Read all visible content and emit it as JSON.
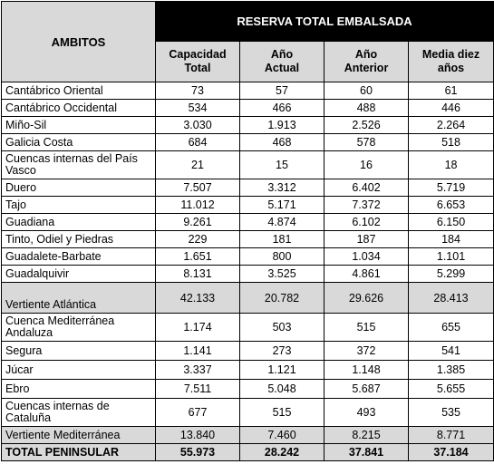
{
  "table": {
    "ambitos_header": "AMBITOS",
    "reserva_header": "RESERVA TOTAL EMBALSADA",
    "col_headers": [
      [
        "Capacidad",
        "Total"
      ],
      [
        "Año",
        "Actual"
      ],
      [
        "Año",
        "Anterior"
      ],
      [
        "Media diez",
        "años"
      ]
    ],
    "rows": [
      {
        "name": "Cantábrico Oriental",
        "values": [
          "73",
          "57",
          "60",
          "61"
        ]
      },
      {
        "name": "Cantábrico Occidental",
        "values": [
          "534",
          "466",
          "488",
          "446"
        ]
      },
      {
        "name": "Miño-Sil",
        "values": [
          "3.030",
          "1.913",
          "2.526",
          "2.264"
        ]
      },
      {
        "name": "Galicia Costa",
        "values": [
          "684",
          "468",
          "578",
          "518"
        ]
      },
      {
        "name": "Cuencas internas del País Vasco",
        "values": [
          "21",
          "15",
          "16",
          "18"
        ]
      },
      {
        "name": "Duero",
        "values": [
          "7.507",
          "3.312",
          "6.402",
          "5.719"
        ]
      },
      {
        "name": "Tajo",
        "values": [
          "11.012",
          "5.171",
          "7.372",
          "6.653"
        ]
      },
      {
        "name": "Guadiana",
        "values": [
          "9.261",
          "4.874",
          "6.102",
          "6.150"
        ]
      },
      {
        "name": "Tinto, Odiel y Piedras",
        "values": [
          "229",
          "181",
          "187",
          "184"
        ]
      },
      {
        "name": "Guadalete-Barbate",
        "values": [
          "1.651",
          "800",
          "1.034",
          "1.101"
        ]
      },
      {
        "name": "Guadalquivir",
        "values": [
          "8.131",
          "3.525",
          "4.861",
          "5.299"
        ]
      },
      {
        "name": "Vertiente Atlántica",
        "values": [
          "42.133",
          "20.782",
          "29.626",
          "28.413"
        ]
      },
      {
        "name": "Cuenca Mediterránea Andaluza",
        "values": [
          "1.174",
          "503",
          "515",
          "655"
        ]
      },
      {
        "name": "Segura",
        "values": [
          "1.141",
          "273",
          "372",
          "541"
        ]
      },
      {
        "name": "Júcar",
        "values": [
          "3.337",
          "1.121",
          "1.148",
          "1.385"
        ]
      },
      {
        "name": "Ebro",
        "values": [
          "7.511",
          "5.048",
          "5.687",
          "5.655"
        ]
      },
      {
        "name": "Cuencas internas de Cataluña",
        "values": [
          "677",
          "515",
          "493",
          "535"
        ]
      },
      {
        "name": "Vertiente Mediterránea",
        "values": [
          "13.840",
          "7.460",
          "8.215",
          "8.771"
        ]
      },
      {
        "name": "TOTAL PENINSULAR",
        "values": [
          "55.973",
          "28.242",
          "37.841",
          "37.184"
        ]
      }
    ]
  },
  "colors": {
    "header_black": "#000000",
    "header_gray": "#d9d9d9"
  }
}
